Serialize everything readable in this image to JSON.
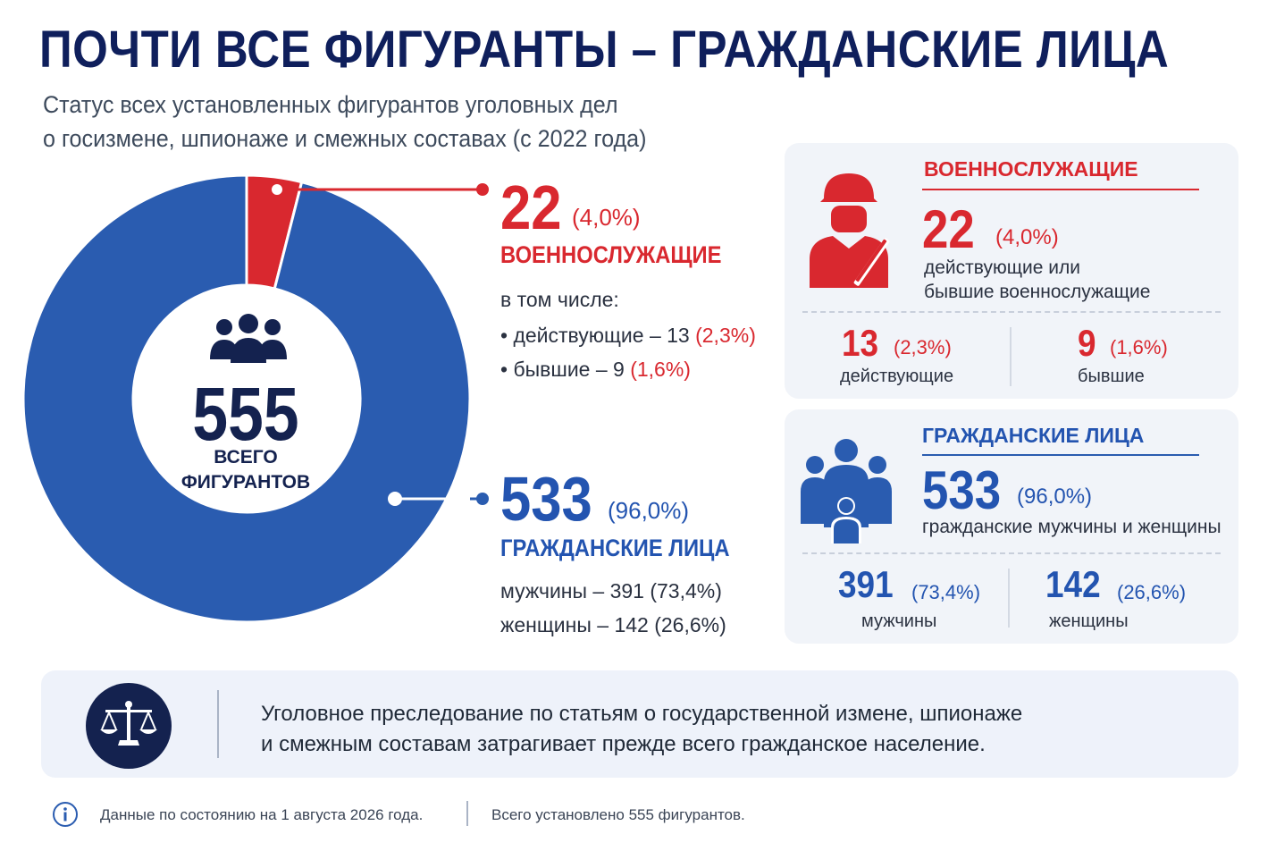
{
  "header": {
    "title": "ПОЧТИ ВСЕ ФИГУРАНТЫ – ГРАЖДАНСКИЕ ЛИЦА",
    "subtitle_line1": "Статус всех установленных фигурантов уголовных дел",
    "subtitle_line2": "о госизмене, шпионаже и смежных составах (с 2022 года)"
  },
  "colors": {
    "military": "#d9282f",
    "civilian": "#2a5cb0",
    "dark": "#14224f"
  },
  "center": {
    "total": "555",
    "label_line1": "ВСЕГО",
    "label_line2": "ФИГУРАНТОВ",
    "icon": "people-group-icon"
  },
  "chart_data": {
    "type": "pie",
    "total": 555,
    "slices": [
      {
        "name": "ВОЕННОСЛУЖАЩИЕ",
        "value": 22,
        "percent": 4.0
      },
      {
        "name": "ГРАЖДАНСКИЕ ЛИЦА",
        "value": 533,
        "percent": 96.0
      }
    ]
  },
  "military": {
    "count": "22",
    "pct": "(4,0%)",
    "label": "ВОЕННОСЛУЖАЩИЕ",
    "incl": "в том числе:",
    "active_text": "• действующие – 13",
    "active_pct": "(2,3%)",
    "former_text": "• бывшие – 9",
    "former_pct": "(1,6%)"
  },
  "civilian": {
    "count": "533",
    "pct": "(96,0%)",
    "label": "ГРАЖДАНСКИЕ ЛИЦА",
    "men": "мужчины – 391 (73,4%)",
    "women": "женщины – 142 (26,6%)"
  },
  "card_military": {
    "title": "ВОЕННОСЛУЖАЩИЕ",
    "icon": "soldier-icon",
    "count": "22",
    "pct": "(4,0%)",
    "desc_line1": "действующие или",
    "desc_line2": "бывшие военнослужащие",
    "active_num": "13",
    "active_pct": "(2,3%)",
    "active_label": "действующие",
    "former_num": "9",
    "former_pct": "(1,6%)",
    "former_label": "бывшие"
  },
  "card_civilian": {
    "title": "ГРАЖДАНСКИЕ ЛИЦА",
    "icon": "family-icon",
    "count": "533",
    "pct": "(96,0%)",
    "desc": "гражданские мужчины и женщины",
    "men_num": "391",
    "men_pct": "(73,4%)",
    "men_label": "мужчины",
    "women_num": "142",
    "women_pct": "(26,6%)",
    "women_label": "женщины"
  },
  "note": {
    "icon": "scales-icon",
    "line1": "Уголовное преследование по статьям о государственной измене, шпионаже",
    "line2": "и смежным составам затрагивает прежде всего гражданское население."
  },
  "footer": {
    "icon": "info-icon",
    "date_text": "Данные по состоянию на 1 августа 2026 года.",
    "total_text": "Всего установлено 555 фигурантов."
  }
}
